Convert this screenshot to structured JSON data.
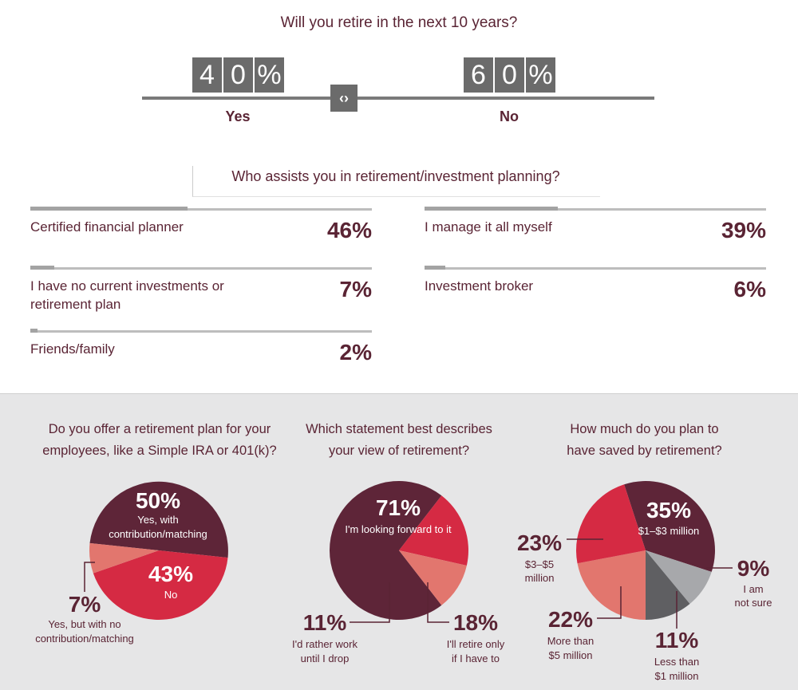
{
  "retire_question": {
    "title": "Will you retire in the next 10 years?",
    "yes_digits": [
      "4",
      "0",
      "%"
    ],
    "no_digits": [
      "6",
      "0",
      "%"
    ],
    "yes_label": "Yes",
    "no_label": "No",
    "handle_icon": "‹›"
  },
  "assist_question": {
    "title": "Who assists you in retirement/investment planning?",
    "items": [
      {
        "label": "Certified financial planner",
        "pct": "46%",
        "value": 46
      },
      {
        "label": "I manage it all myself",
        "pct": "39%",
        "value": 39
      },
      {
        "label": "I have no current investments or retirement plan",
        "pct": "7%",
        "value": 7
      },
      {
        "label": "Investment broker",
        "pct": "6%",
        "value": 6
      },
      {
        "label": "Friends/family",
        "pct": "2%",
        "value": 2
      }
    ]
  },
  "colors": {
    "dark": "#5e2538",
    "red": "#d52a43",
    "salmon": "#e2766e",
    "gray": "#5f5f62",
    "light_gray": "#a7a8ab",
    "text": "#5a2434"
  },
  "chart_data": [
    {
      "type": "pie",
      "title": "Do you offer a retirement plan for your employees, like a Simple IRA or 401(k)?",
      "slices": [
        {
          "name": "Yes, with contribution/matching",
          "value": 50,
          "pct": "50%"
        },
        {
          "name": "No",
          "value": 43,
          "pct": "43%"
        },
        {
          "name": "Yes, but with no contribution/matching",
          "value": 7,
          "pct": "7%"
        }
      ]
    },
    {
      "type": "pie",
      "title": "Which statement best describes your view of retirement?",
      "slices": [
        {
          "name": "I'm looking forward to it",
          "value": 71,
          "pct": "71%"
        },
        {
          "name": "I'll retire only if I have to",
          "value": 18,
          "pct": "18%"
        },
        {
          "name": "I'd rather work until I drop",
          "value": 11,
          "pct": "11%"
        }
      ]
    },
    {
      "type": "pie",
      "title": "How much do you plan to have saved by retirement?",
      "slices": [
        {
          "name": "$1–$3 million",
          "value": 35,
          "pct": "35%"
        },
        {
          "name": "I am not sure",
          "value": 9,
          "pct": "9%"
        },
        {
          "name": "Less than $1 million",
          "value": 11,
          "pct": "11%"
        },
        {
          "name": "More than $5 million",
          "value": 22,
          "pct": "22%"
        },
        {
          "name": "$3–$5 million",
          "value": 23,
          "pct": "23%"
        }
      ]
    }
  ]
}
